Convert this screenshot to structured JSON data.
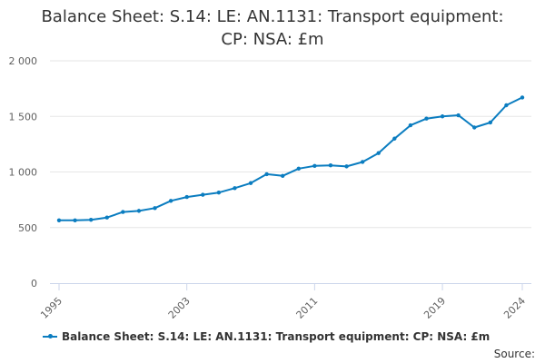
{
  "chart_data": {
    "type": "line",
    "title_lines": [
      "Balance Sheet: S.14: LE: AN.1131: Transport equipment:",
      "CP: NSA: £m"
    ],
    "xlabel": "",
    "ylabel": "",
    "ylim": [
      0,
      2000
    ],
    "y_ticks": [
      0,
      500,
      1000,
      1500,
      2000
    ],
    "y_tick_labels": [
      "0",
      "500",
      "1 000",
      "1 500",
      "2 000"
    ],
    "xlim": [
      1995,
      2024
    ],
    "x_ticks": [
      1995,
      2003,
      2011,
      2019,
      2024
    ],
    "x_tick_labels": [
      "1995",
      "2003",
      "2011",
      "2019",
      "2024"
    ],
    "grid": true,
    "legend_position": "bottom-left",
    "series": [
      {
        "name": "Balance Sheet: S.14: LE: AN.1131: Transport equipment: CP: NSA: £m",
        "color": "#0b7dc0",
        "x": [
          1995,
          1996,
          1997,
          1998,
          1999,
          2000,
          2001,
          2002,
          2003,
          2004,
          2005,
          2006,
          2007,
          2008,
          2009,
          2010,
          2011,
          2012,
          2013,
          2014,
          2015,
          2016,
          2017,
          2018,
          2019,
          2020,
          2021,
          2022,
          2023,
          2024
        ],
        "values": [
          565,
          565,
          570,
          590,
          640,
          650,
          675,
          740,
          775,
          795,
          815,
          855,
          900,
          980,
          965,
          1030,
          1055,
          1060,
          1050,
          1090,
          1170,
          1300,
          1420,
          1480,
          1500,
          1510,
          1400,
          1445,
          1600,
          1670
        ]
      }
    ]
  },
  "credits": "Source:"
}
